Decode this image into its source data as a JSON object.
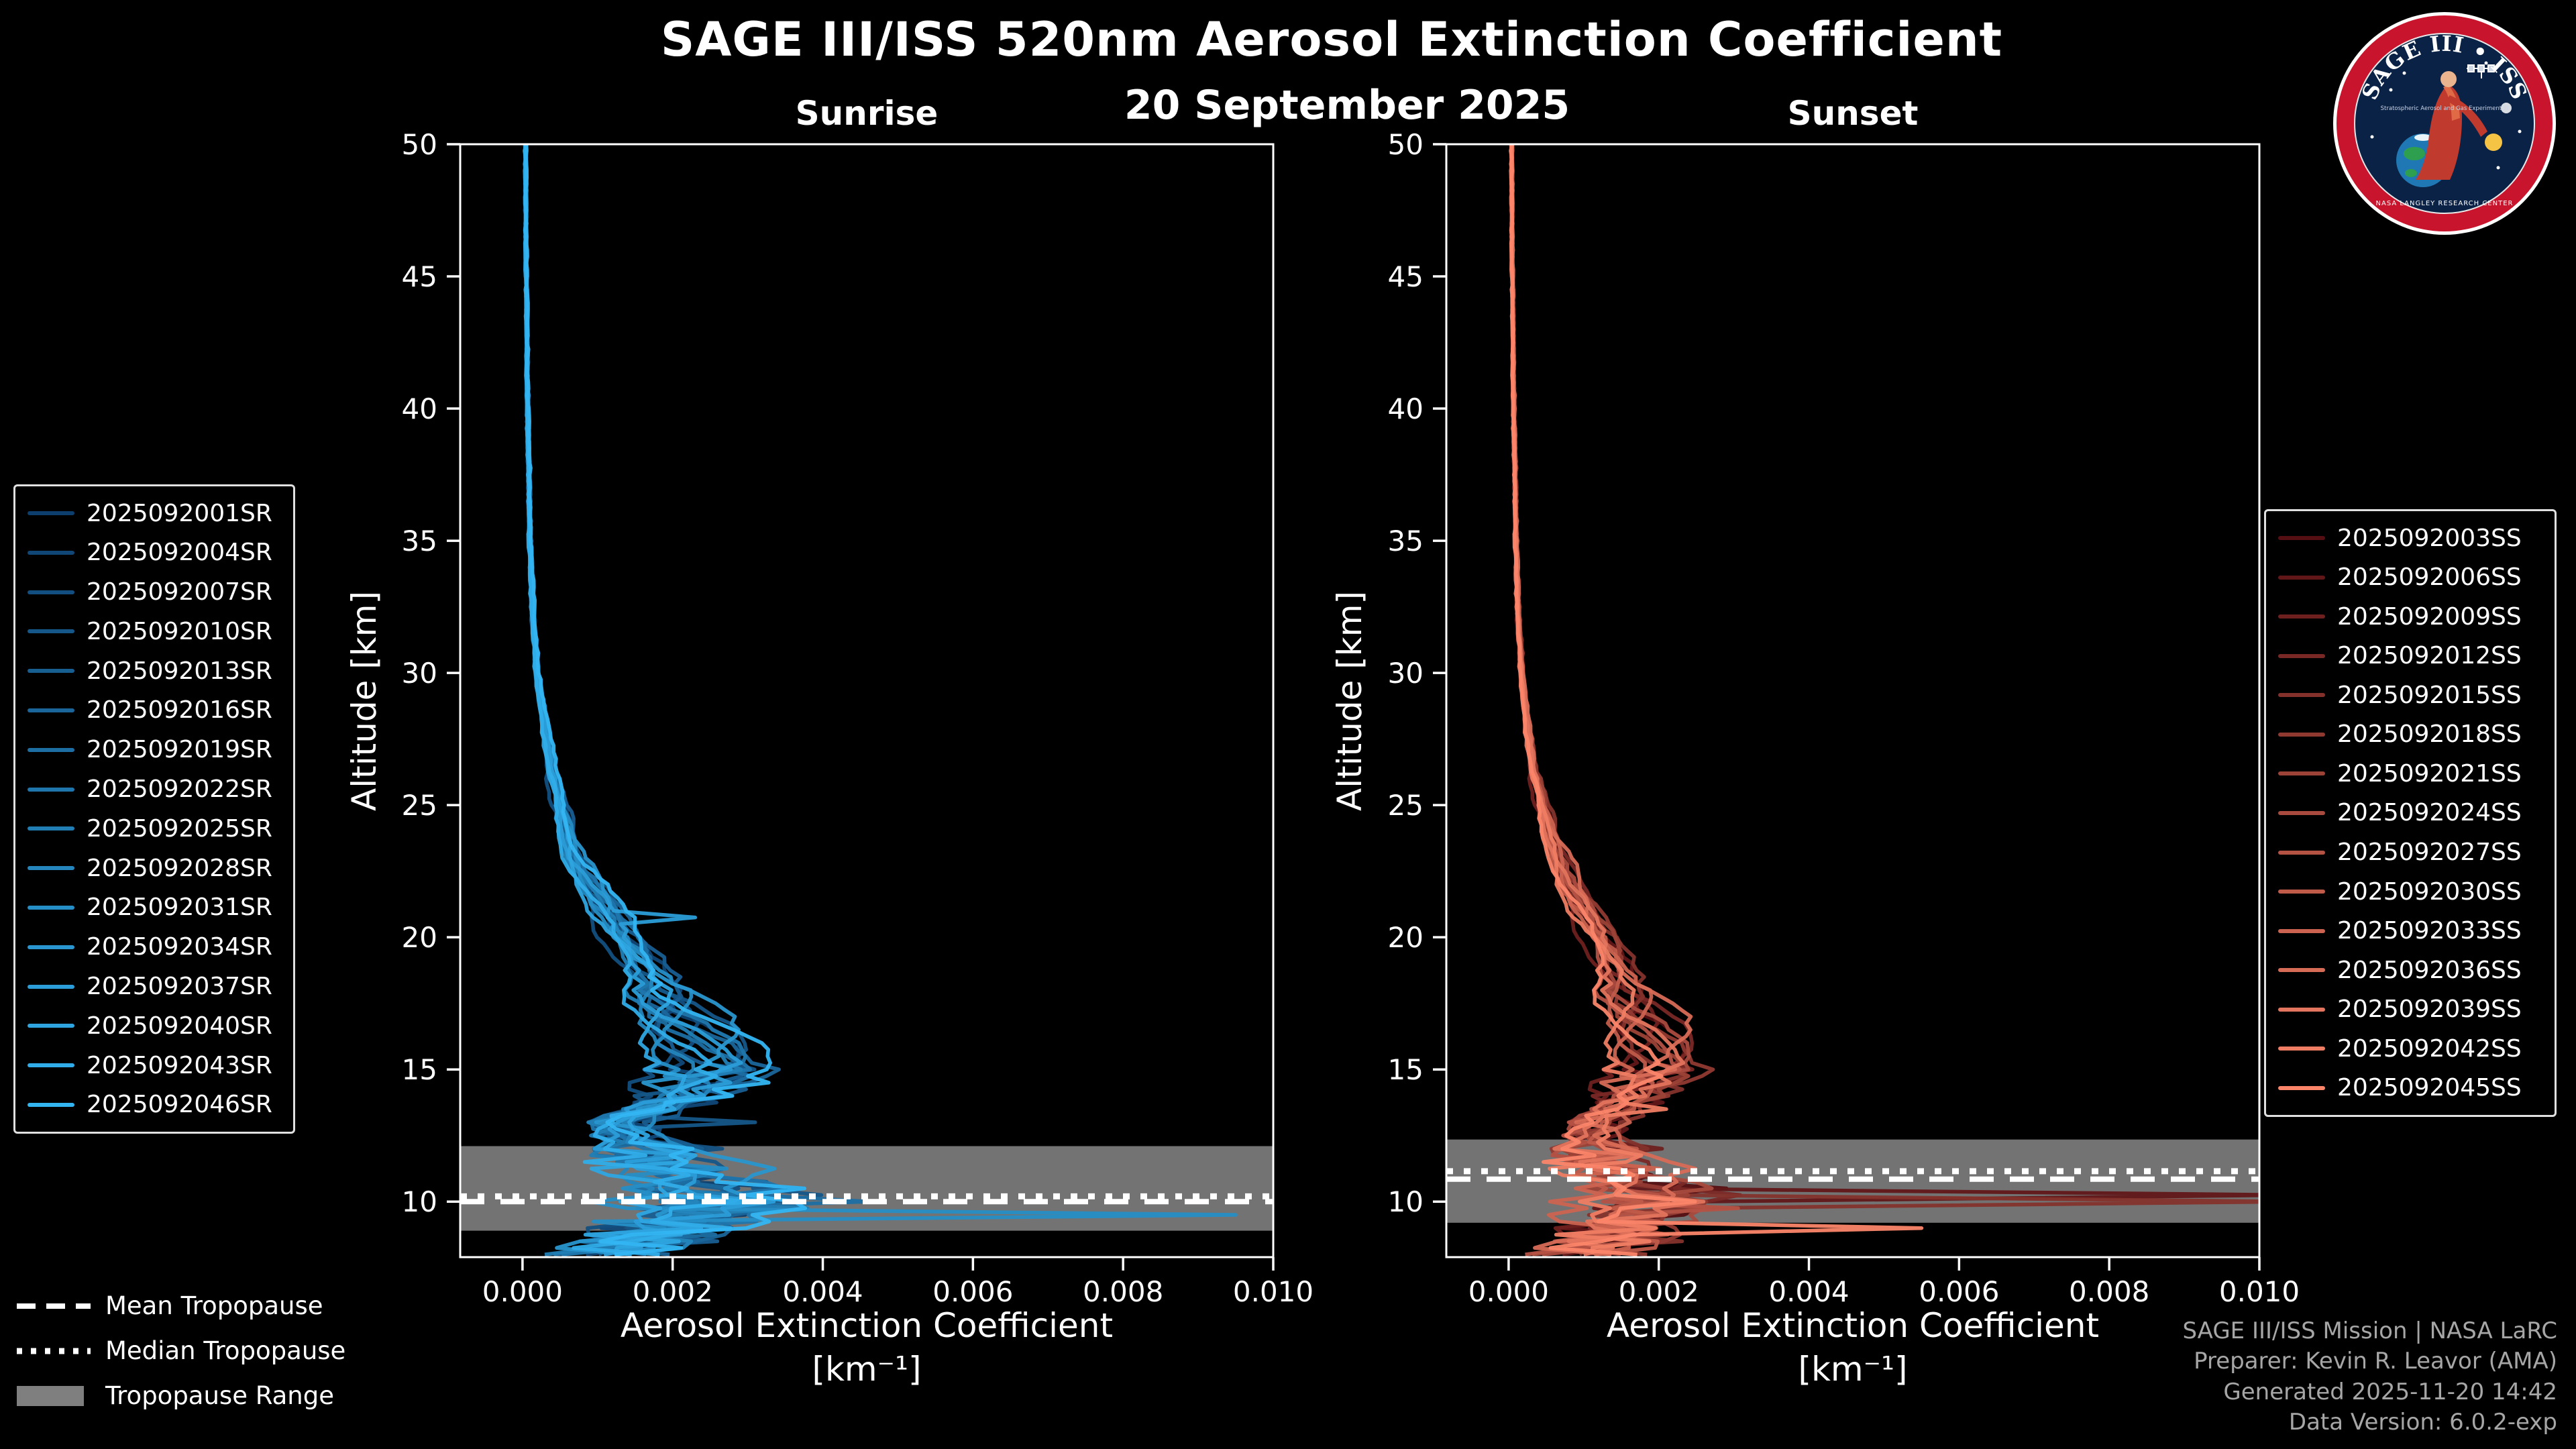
{
  "header": {
    "title": "SAGE III/ISS 520nm Aerosol Extinction Coefficient",
    "date": "20 September 2025"
  },
  "axes": {
    "xlabel": "Aerosol Extinction Coefficient",
    "xunits": "[km⁻¹]",
    "ylabel": "Altitude [km]"
  },
  "tropopause_legend": [
    {
      "label": "Mean Tropopause",
      "style": "dashed"
    },
    {
      "label": "Median Tropopause",
      "style": "dotted"
    },
    {
      "label": "Tropopause Range",
      "style": "band"
    }
  ],
  "credits": [
    "SAGE III/ISS Mission | NASA LaRC",
    "Preparer: Kevin R. Leavor (AMA)",
    "Generated 2025-11-20 14:42",
    "Data Version: 6.0.2-exp"
  ],
  "logo": {
    "title": "SAGE III • ISS",
    "subtitle": "Stratospheric Aerosol and Gas Experiment III",
    "banner": "NASA LANGLEY RESEARCH CENTER"
  },
  "chart_data": [
    {
      "type": "line",
      "title": "Sunrise",
      "xlabel": "Aerosol Extinction Coefficient [km⁻¹]",
      "ylabel": "Altitude [km]",
      "xlim": [
        -0.00083,
        0.01
      ],
      "ylim": [
        7.9,
        50
      ],
      "xticks": [
        0,
        0.002,
        0.004,
        0.006,
        0.008,
        0.01
      ],
      "yticks": [
        10,
        15,
        20,
        25,
        30,
        35,
        40,
        45,
        50
      ],
      "legend_position": "left",
      "color_start": "#0d3f6e",
      "color_end": "#33b5f2",
      "line_color_note": "series shade dark blue (first) to bright blue (last)",
      "series_names": [
        "2025092001SR",
        "2025092004SR",
        "2025092007SR",
        "2025092010SR",
        "2025092013SR",
        "2025092016SR",
        "2025092019SR",
        "2025092022SR",
        "2025092025SR",
        "2025092028SR",
        "2025092031SR",
        "2025092034SR",
        "2025092037SR",
        "2025092040SR",
        "2025092043SR",
        "2025092046SR"
      ],
      "base_profile": {
        "altitude": [
          50,
          45,
          40,
          35,
          32,
          30,
          28,
          26,
          25,
          24,
          23,
          22,
          21,
          20,
          19,
          18,
          17,
          16,
          15,
          14,
          13.5,
          13,
          12.5,
          12,
          11.5,
          11,
          10.5,
          10,
          9.5,
          9,
          8.5,
          8
        ],
        "extinction": [
          4e-05,
          5e-05,
          7e-05,
          0.0001,
          0.00014,
          0.0002,
          0.0003,
          0.0004,
          0.0005,
          0.0006,
          0.0007,
          0.0009,
          0.0011,
          0.0013,
          0.0016,
          0.0019,
          0.0021,
          0.0023,
          0.0024,
          0.0021,
          0.0017,
          0.0013,
          0.0015,
          0.0018,
          0.002,
          0.0022,
          0.0024,
          0.0026,
          0.0022,
          0.0018,
          0.0014,
          0.0011
        ]
      },
      "spikes": [
        {
          "series": 10,
          "altitude": 9.4,
          "value": 0.0095
        },
        {
          "series": 6,
          "altitude": 10.1,
          "value": 0.0046
        },
        {
          "series": 12,
          "altitude": 20.7,
          "value": 0.0023
        },
        {
          "series": 3,
          "altitude": 12.9,
          "value": 0.0031
        }
      ],
      "tropopause": {
        "mean_km": 10.0,
        "median_km": 10.2,
        "range_km": [
          8.9,
          12.1
        ]
      }
    },
    {
      "type": "line",
      "title": "Sunset",
      "xlabel": "Aerosol Extinction Coefficient [km⁻¹]",
      "ylabel": "Altitude [km]",
      "xlim": [
        -0.00083,
        0.01
      ],
      "ylim": [
        7.9,
        50
      ],
      "xticks": [
        0,
        0.002,
        0.004,
        0.006,
        0.008,
        0.01
      ],
      "yticks": [
        10,
        15,
        20,
        25,
        30,
        35,
        40,
        45,
        50
      ],
      "legend_position": "right",
      "color_start": "#550f12",
      "color_end": "#fb8569",
      "line_color_note": "series shade dark maroon (first) to light salmon (last)",
      "series_names": [
        "2025092003SS",
        "2025092006SS",
        "2025092009SS",
        "2025092012SS",
        "2025092015SS",
        "2025092018SS",
        "2025092021SS",
        "2025092024SS",
        "2025092027SS",
        "2025092030SS",
        "2025092033SS",
        "2025092036SS",
        "2025092039SS",
        "2025092042SS",
        "2025092045SS"
      ],
      "base_profile": {
        "altitude": [
          50,
          45,
          40,
          35,
          32,
          30,
          28,
          26,
          25,
          24,
          23,
          22,
          21,
          20,
          19,
          18,
          17,
          16,
          15,
          14,
          13.5,
          13,
          12.5,
          12,
          11.5,
          11,
          10.5,
          10,
          9.5,
          9,
          8.5,
          8
        ],
        "extinction": [
          4e-05,
          5e-05,
          7e-05,
          0.0001,
          0.00013,
          0.00018,
          0.00025,
          0.00035,
          0.00045,
          0.00055,
          0.0007,
          0.0008,
          0.001,
          0.0012,
          0.0014,
          0.0016,
          0.0018,
          0.0019,
          0.0019,
          0.0016,
          0.0014,
          0.0012,
          0.0012,
          0.0013,
          0.0014,
          0.0016,
          0.0018,
          0.002,
          0.0017,
          0.0014,
          0.0012,
          0.001
        ]
      },
      "spikes": [
        {
          "series": 1,
          "altitude": 10.15,
          "value": 0.0104
        },
        {
          "series": 4,
          "altitude": 9.9,
          "value": 0.0104
        },
        {
          "series": 13,
          "altitude": 13.4,
          "value": 0.0021
        },
        {
          "series": 14,
          "altitude": 9.0,
          "value": 0.0055
        }
      ],
      "tropopause": {
        "mean_km": 10.85,
        "median_km": 11.15,
        "range_km": [
          9.2,
          12.35
        ]
      }
    }
  ]
}
